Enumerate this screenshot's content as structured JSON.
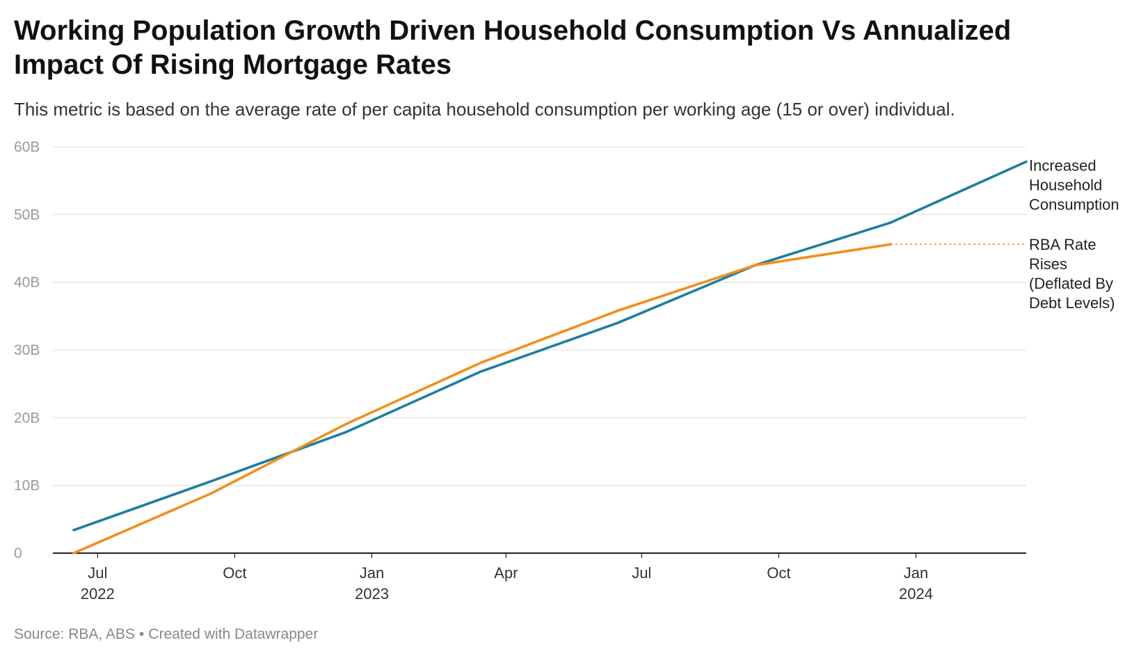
{
  "title": "Working Population Growth Driven Household Consumption Vs Annualized Impact Of Rising Mortgage Rates",
  "subtitle": "This metric is based on the average rate of per capita household consumption per working age (15 or over) individual.",
  "footer": {
    "source": "Source: RBA, ABS",
    "separator": "•",
    "credit": "Created with Datawrapper"
  },
  "colors": {
    "consumption": "#1b7f9e",
    "rba": "#f28e1c",
    "grid": "#e3e3e3",
    "axis": "#222222"
  },
  "chart_data": {
    "type": "line",
    "title": "Working Population Growth Driven Household Consumption Vs Annualized Impact Of Rising Mortgage Rates",
    "ylim": [
      0,
      60
    ],
    "yticks": [
      0,
      10,
      20,
      30,
      40,
      50,
      60
    ],
    "ytick_labels": [
      "0",
      "10B",
      "20B",
      "30B",
      "40B",
      "50B",
      "60B"
    ],
    "xticks": [
      {
        "date": "2022-07-01",
        "month": "Jul",
        "year": "2022"
      },
      {
        "date": "2022-10-01",
        "month": "Oct",
        "year": ""
      },
      {
        "date": "2023-01-01",
        "month": "Jan",
        "year": "2023"
      },
      {
        "date": "2023-04-01",
        "month": "Apr",
        "year": ""
      },
      {
        "date": "2023-07-01",
        "month": "Jul",
        "year": ""
      },
      {
        "date": "2023-10-01",
        "month": "Oct",
        "year": ""
      },
      {
        "date": "2024-01-01",
        "month": "Jan",
        "year": "2024"
      }
    ],
    "xlim": [
      "2022-06-01",
      "2024-03-15"
    ],
    "grid": true,
    "series": [
      {
        "name": "Increased Household Consumption",
        "label_lines": [
          "Increased",
          "Household",
          "Consumption"
        ],
        "color": "#1b7f9e",
        "points": [
          {
            "x": "2022-06-15",
            "y": 3.4
          },
          {
            "x": "2022-09-15",
            "y": 10.6
          },
          {
            "x": "2022-12-15",
            "y": 17.9
          },
          {
            "x": "2023-03-15",
            "y": 26.8
          },
          {
            "x": "2023-06-15",
            "y": 34.0
          },
          {
            "x": "2023-09-15",
            "y": 42.5
          },
          {
            "x": "2023-12-15",
            "y": 48.8
          },
          {
            "x": "2024-03-15",
            "y": 57.8
          }
        ]
      },
      {
        "name": "RBA Rate Rises (Deflated By Debt Levels)",
        "label_lines": [
          "RBA Rate",
          "Rises",
          "(Deflated By",
          "Debt Levels)"
        ],
        "color": "#f28e1c",
        "dotted_extension": true,
        "points": [
          {
            "x": "2022-06-15",
            "y": 0.0
          },
          {
            "x": "2022-09-15",
            "y": 8.8
          },
          {
            "x": "2022-12-15",
            "y": 19.1
          },
          {
            "x": "2023-03-15",
            "y": 28.1
          },
          {
            "x": "2023-06-15",
            "y": 35.8
          },
          {
            "x": "2023-09-15",
            "y": 42.5
          },
          {
            "x": "2023-12-15",
            "y": 45.6
          }
        ]
      }
    ]
  }
}
